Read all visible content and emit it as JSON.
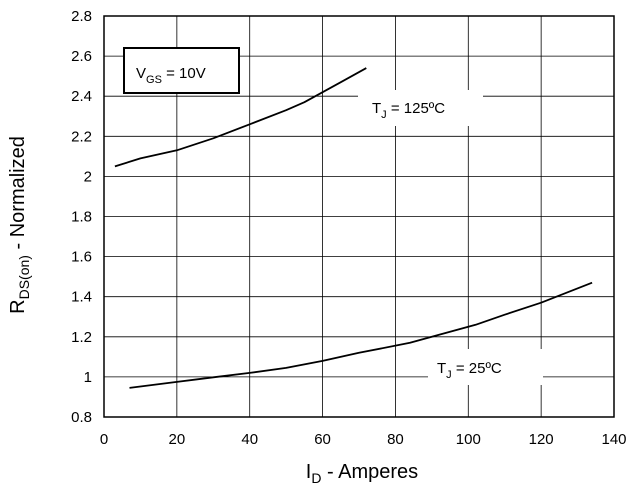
{
  "chart_data": {
    "type": "line",
    "title": "",
    "xlabel": {
      "main": "I",
      "sub": "D",
      "rest": " - Amperes"
    },
    "ylabel": {
      "main": "R",
      "sub": "DS(on)",
      "rest": " - Normalized"
    },
    "xlim": [
      0,
      140
    ],
    "ylim": [
      0.8,
      2.8
    ],
    "x_ticks": [
      "0",
      "20",
      "40",
      "60",
      "80",
      "100",
      "120",
      "140"
    ],
    "y_ticks": [
      "0.8",
      "1",
      "1.2",
      "1.4",
      "1.6",
      "1.8",
      "2",
      "2.2",
      "2.4",
      "2.6",
      "2.8"
    ],
    "grid": true,
    "legend": "none",
    "condition_box": {
      "main": "V",
      "sub": "GS",
      "rest": " = 10V"
    },
    "series": [
      {
        "label": {
          "main": "T",
          "sub": "J",
          "rest": " = 125ºC"
        },
        "x": [
          3,
          10,
          20,
          30,
          40,
          50,
          55,
          60,
          65,
          72
        ],
        "y": [
          2.05,
          2.09,
          2.13,
          2.19,
          2.26,
          2.33,
          2.37,
          2.42,
          2.47,
          2.54
        ]
      },
      {
        "label": {
          "main": "T",
          "sub": "J",
          "rest": " = 25ºC"
        },
        "x": [
          7,
          20,
          30,
          40,
          50,
          60,
          70,
          84,
          92,
          102,
          110,
          120,
          134
        ],
        "y": [
          0.945,
          0.975,
          0.998,
          1.02,
          1.045,
          1.08,
          1.12,
          1.17,
          1.21,
          1.26,
          1.31,
          1.37,
          1.47
        ]
      }
    ]
  }
}
